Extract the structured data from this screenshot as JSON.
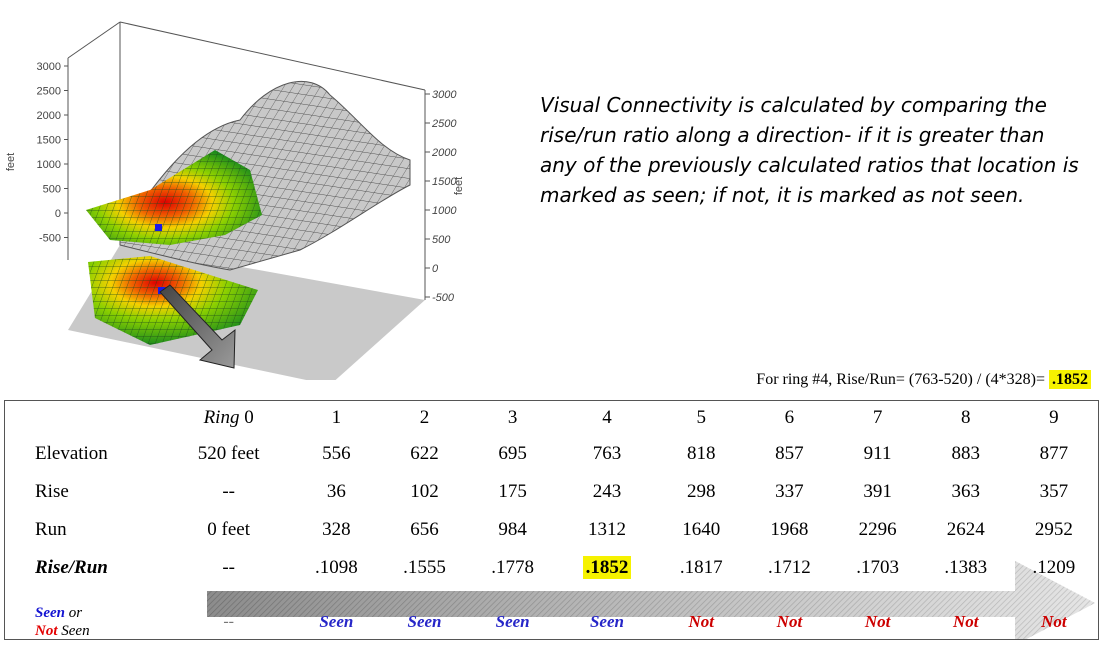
{
  "figure": {
    "left_axis_ticks": [
      "3000",
      "2500",
      "2000",
      "1500",
      "1000",
      "500",
      "0",
      "-500"
    ],
    "right_axis_ticks": [
      "3000",
      "2500",
      "2000",
      "1500",
      "1000",
      "500",
      "0",
      "-500"
    ],
    "left_axis_label": "feet",
    "right_axis_label": "feet"
  },
  "explanation": "Visual Connectivity is calculated by comparing the rise/run ratio along a direction- if it is greater than any of the previously calculated ratios that location is marked as seen; if not, it is marked as not seen.",
  "formula": {
    "text": "For ring #4, Rise/Run= (763-520) / (4*328)=",
    "result": ".1852"
  },
  "table": {
    "ring_label": "Ring",
    "rings": [
      "0",
      "1",
      "2",
      "3",
      "4",
      "5",
      "6",
      "7",
      "8",
      "9"
    ],
    "rows": [
      {
        "label": "Elevation",
        "values": [
          "520 feet",
          "556",
          "622",
          "695",
          "763",
          "818",
          "857",
          "911",
          "883",
          "877"
        ]
      },
      {
        "label": "Rise",
        "values": [
          "--",
          "36",
          "102",
          "175",
          "243",
          "298",
          "337",
          "391",
          "363",
          "357"
        ]
      },
      {
        "label": "Run",
        "values": [
          "0 feet",
          "328",
          "656",
          "984",
          "1312",
          "1640",
          "1968",
          "2296",
          "2624",
          "2952"
        ]
      },
      {
        "label": "Rise/Run",
        "values": [
          "--",
          ".1098",
          ".1555",
          ".1778",
          ".1852",
          ".1817",
          ".1712",
          ".1703",
          ".1383",
          ".1209"
        ]
      }
    ],
    "highlight_index": 4,
    "seen_label": {
      "seen": "Seen",
      "or": "or",
      "not": "Not",
      "seen2": "Seen"
    },
    "status": [
      "--",
      "Seen",
      "Seen",
      "Seen",
      "Seen",
      "Not",
      "Not",
      "Not",
      "Not",
      "Not"
    ]
  }
}
